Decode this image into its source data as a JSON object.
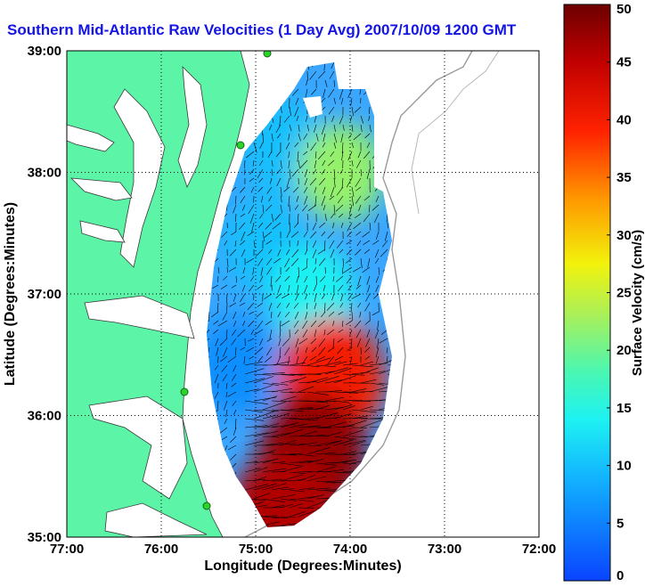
{
  "chart_data": {
    "type": "heatmap",
    "title": "Southern Mid-Atlantic Raw Velocities (1 Day Avg) 2007/10/09 1200 GMT",
    "xlabel": "Longitude (Degrees:Minutes)",
    "ylabel": "Latitude (Degrees:Minutes)",
    "xlim": [
      -77,
      -72
    ],
    "ylim": [
      35,
      39
    ],
    "x_ticks": [
      "77:00",
      "76:00",
      "75:00",
      "74:00",
      "73:00",
      "72:00"
    ],
    "y_ticks": [
      "35:00",
      "36:00",
      "37:00",
      "38:00",
      "39:00"
    ],
    "grid": true,
    "colorbar": {
      "label": "Surface Velocity (cm/s)",
      "range": [
        0,
        50
      ],
      "ticks": [
        "0",
        "5",
        "10",
        "15",
        "20",
        "25",
        "30",
        "35",
        "40",
        "45",
        "50"
      ]
    },
    "regions": [
      {
        "lon": -74.7,
        "lat": 38.2,
        "speed": 10
      },
      {
        "lon": -74.1,
        "lat": 38.0,
        "speed": 22
      },
      {
        "lon": -74.9,
        "lat": 37.4,
        "speed": 10
      },
      {
        "lon": -74.4,
        "lat": 37.0,
        "speed": 14
      },
      {
        "lon": -75.2,
        "lat": 36.4,
        "speed": 6
      },
      {
        "lon": -74.2,
        "lat": 36.3,
        "speed": 40
      },
      {
        "lon": -74.4,
        "lat": 35.7,
        "speed": 48
      },
      {
        "lon": -74.7,
        "lat": 35.2,
        "speed": 46
      }
    ]
  }
}
